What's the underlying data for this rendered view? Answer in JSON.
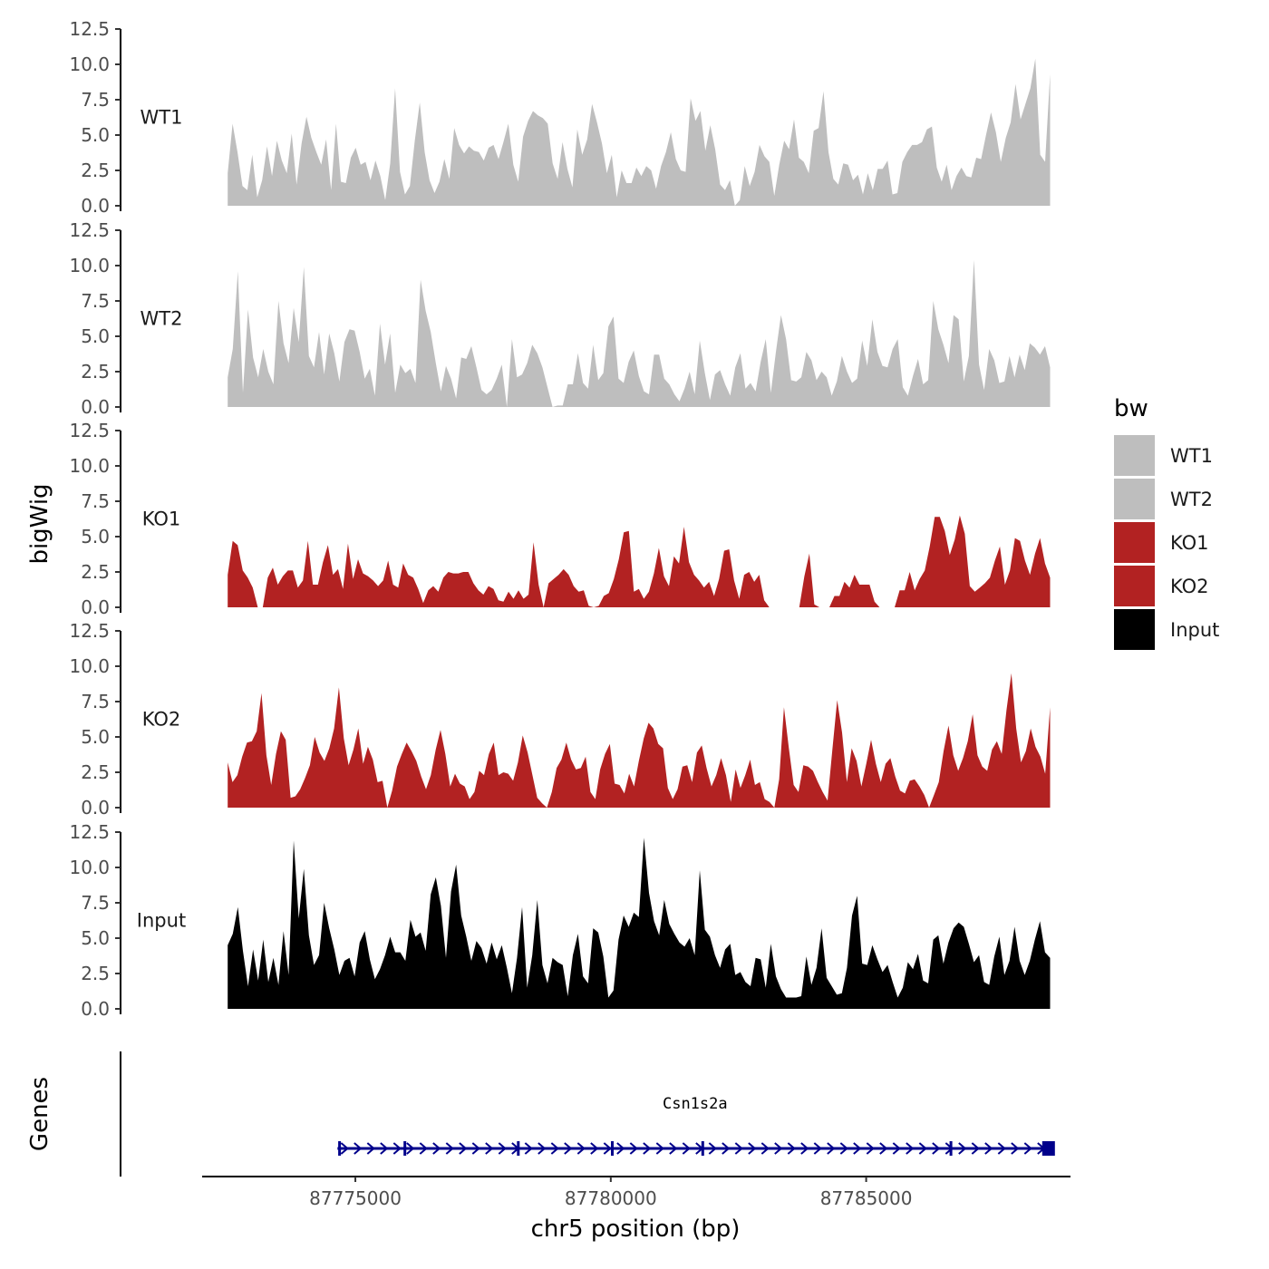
{
  "chart_data": {
    "type": "area",
    "y_axis_title": "bigWig",
    "x_axis_title": "chr5 position (bp)",
    "x_range": [
      87772000,
      87789000
    ],
    "x_ticks": [
      87775000,
      87780000,
      87785000
    ],
    "x_tick_labels": [
      "87775000",
      "87780000",
      "87785000"
    ],
    "y_range": [
      0,
      12.5
    ],
    "y_ticks": [
      0,
      2.5,
      5,
      7.5,
      10,
      12.5
    ],
    "y_tick_labels": [
      "0.0",
      "2.5",
      "5.0",
      "7.5",
      "10.0",
      "12.5"
    ],
    "track_x_start": 87772500,
    "track_x_end": 87788600,
    "tracks": [
      {
        "name": "WT1",
        "label": "WT1",
        "color": "#BEBEBE",
        "values": [
          2.3,
          5.8,
          3.8,
          1.4,
          1.1,
          3.6,
          0.6,
          1.8,
          4.2,
          2.1,
          4.6,
          3.2,
          2.3,
          5.1,
          1.5,
          4.4,
          6.3,
          4.8,
          3.8,
          2.9,
          4.7,
          1.1,
          5.8,
          1.7,
          1.6,
          3.4,
          4.1,
          2.9,
          3.1,
          1.8,
          3.2,
          2.1,
          0.4,
          3.0,
          8.3,
          2.4,
          0.8,
          1.4,
          4.6,
          7.3,
          3.8,
          1.8,
          0.9,
          1.7,
          3.3,
          1.9,
          5.5,
          4.3,
          3.7,
          4.2,
          3.9,
          3.8,
          3.2,
          4.1,
          4.3,
          3.3,
          4.5,
          5.8,
          2.9,
          1.7,
          4.9,
          6.0,
          6.7,
          6.4,
          6.2,
          5.8,
          3.0,
          1.9,
          4.5,
          2.6,
          1.3,
          5.4,
          3.6,
          4.7,
          7.2,
          5.9,
          4.4,
          2.3,
          3.6,
          0.6,
          2.5,
          1.6,
          1.6,
          2.7,
          2.1,
          2.8,
          2.5,
          1.2,
          2.8,
          3.8,
          5.2,
          3.3,
          2.5,
          2.4,
          7.6,
          6.0,
          6.7,
          3.9,
          5.7,
          4.0,
          1.5,
          1.1,
          1.8,
          0.0,
          0.4,
          2.8,
          1.4,
          2.4,
          4.3,
          3.5,
          3.1,
          0.7,
          2.9,
          4.6,
          4.0,
          6.1,
          3.4,
          3.1,
          2.3,
          5.3,
          5.5,
          8.1,
          3.8,
          1.9,
          1.5,
          3.0,
          2.9,
          1.8,
          2.2,
          0.8,
          2.3,
          1.1,
          2.6,
          2.6,
          3.2,
          0.8,
          0.9,
          3.1,
          3.8,
          4.3,
          4.3,
          4.5,
          5.4,
          5.6,
          2.7,
          1.7,
          2.9,
          1.1,
          2.1,
          2.7,
          2.1,
          2.0,
          3.4,
          3.3,
          5.0,
          6.6,
          5.2,
          3.1,
          4.8,
          5.9,
          8.6,
          6.1,
          7.2,
          8.3,
          10.4,
          3.6,
          3.1,
          9.3
        ]
      },
      {
        "name": "WT2",
        "label": "WT2",
        "color": "#BEBEBE",
        "values": [
          2.1,
          4.1,
          9.6,
          1.0,
          6.9,
          3.5,
          2.1,
          4.1,
          2.5,
          1.6,
          7.5,
          4.5,
          3.1,
          7.0,
          4.6,
          9.9,
          3.6,
          2.8,
          5.3,
          2.3,
          5.2,
          3.8,
          1.8,
          4.6,
          5.5,
          5.4,
          3.9,
          2.0,
          2.7,
          0.8,
          5.9,
          3.0,
          5.2,
          1.0,
          3.0,
          2.4,
          2.7,
          1.7,
          9.0,
          6.8,
          5.3,
          3.1,
          1.1,
          2.9,
          2.0,
          0.6,
          3.5,
          3.4,
          4.3,
          2.8,
          1.2,
          0.9,
          1.2,
          2.0,
          3.0,
          0.0,
          4.8,
          2.1,
          2.3,
          3.1,
          4.4,
          3.8,
          2.8,
          1.4,
          0.0,
          0.1,
          0.1,
          1.6,
          1.6,
          3.8,
          1.7,
          1.3,
          4.4,
          1.9,
          2.4,
          5.7,
          6.4,
          2.0,
          1.7,
          3.2,
          4.0,
          2.2,
          1.1,
          0.9,
          3.7,
          3.7,
          2.0,
          1.6,
          0.9,
          0.4,
          1.3,
          2.5,
          0.9,
          4.7,
          2.4,
          0.5,
          2.3,
          2.6,
          1.6,
          0.8,
          2.8,
          3.8,
          1.3,
          1.7,
          1.1,
          3.2,
          4.8,
          1.0,
          3.9,
          6.5,
          4.8,
          1.9,
          1.8,
          2.1,
          3.9,
          3.3,
          1.9,
          2.5,
          2.1,
          0.8,
          1.8,
          3.6,
          2.5,
          1.7,
          2.0,
          4.7,
          2.9,
          6.2,
          3.9,
          2.9,
          2.8,
          4.1,
          4.8,
          1.4,
          0.8,
          2.2,
          3.4,
          1.6,
          1.9,
          7.5,
          5.5,
          4.4,
          3.1,
          6.5,
          6.2,
          1.8,
          3.6,
          10.4,
          3.0,
          1.2,
          4.1,
          3.3,
          1.7,
          1.8,
          3.6,
          2.1,
          3.7,
          2.6,
          4.5,
          4.2,
          3.7,
          4.3,
          2.8
        ]
      },
      {
        "name": "KO1",
        "label": "KO1",
        "color": "#B22222",
        "values": [
          2.3,
          4.7,
          4.4,
          2.6,
          2.1,
          1.4,
          0.0,
          0.0,
          2.1,
          2.8,
          1.6,
          2.2,
          2.6,
          2.6,
          1.4,
          1.9,
          4.7,
          1.6,
          1.6,
          3.2,
          4.4,
          2.3,
          2.7,
          1.3,
          4.5,
          2.0,
          3.4,
          2.4,
          2.2,
          1.9,
          1.5,
          1.9,
          3.3,
          1.6,
          1.4,
          3.1,
          2.3,
          2.1,
          1.3,
          0.3,
          1.2,
          1.5,
          1.1,
          2.1,
          2.5,
          2.4,
          2.4,
          2.5,
          2.5,
          1.7,
          1.2,
          0.9,
          1.5,
          1.3,
          0.5,
          0.4,
          1.1,
          0.6,
          1.2,
          0.6,
          0.9,
          4.6,
          1.6,
          0.0,
          1.7,
          2.0,
          2.3,
          2.7,
          2.3,
          1.5,
          1.1,
          1.2,
          0.1,
          0.0,
          0.1,
          0.8,
          1.0,
          2.0,
          3.4,
          5.3,
          5.4,
          1.1,
          1.3,
          0.6,
          1.1,
          2.4,
          4.2,
          2.2,
          1.5,
          3.6,
          3.1,
          5.7,
          3.2,
          2.3,
          1.9,
          1.4,
          1.8,
          0.8,
          2.0,
          4.0,
          4.1,
          1.9,
          0.6,
          2.3,
          2.5,
          1.8,
          2.3,
          0.5,
          0.0,
          0.0,
          0.0,
          0.0,
          0.0,
          0.0,
          0.0,
          2.2,
          3.8,
          0.2,
          0.0,
          0.0,
          0.0,
          0.8,
          0.8,
          1.8,
          1.4,
          2.3,
          1.6,
          1.6,
          1.6,
          0.4,
          0.0,
          0.0,
          0.0,
          0.0,
          1.2,
          1.2,
          2.5,
          1.2,
          2.0,
          2.6,
          4.3,
          6.4,
          6.4,
          5.4,
          3.7,
          4.8,
          6.5,
          5.2,
          1.5,
          1.1,
          1.4,
          1.7,
          2.1,
          3.3,
          4.3,
          1.6,
          2.6,
          4.9,
          4.7,
          3.3,
          2.3,
          3.8,
          4.9,
          3.1,
          2.1
        ]
      },
      {
        "name": "KO2",
        "label": "KO2",
        "color": "#B22222",
        "values": [
          3.2,
          1.8,
          2.3,
          3.6,
          4.6,
          4.7,
          5.4,
          8.1,
          3.7,
          1.6,
          3.8,
          5.4,
          4.8,
          0.7,
          0.8,
          1.3,
          2.1,
          3.0,
          5.0,
          3.9,
          3.3,
          4.2,
          5.6,
          8.5,
          4.9,
          3.0,
          4.1,
          5.6,
          3.1,
          4.3,
          3.4,
          1.8,
          1.9,
          0.0,
          1.2,
          2.9,
          3.8,
          4.6,
          4.0,
          3.3,
          2.2,
          1.3,
          2.3,
          4.1,
          5.5,
          3.8,
          1.5,
          2.4,
          1.7,
          1.5,
          0.6,
          1.1,
          2.6,
          2.3,
          3.8,
          4.6,
          2.3,
          2.5,
          2.4,
          1.9,
          3.2,
          5.1,
          3.9,
          2.3,
          0.7,
          0.3,
          0.0,
          1.1,
          2.8,
          3.4,
          4.6,
          3.4,
          2.7,
          2.8,
          3.6,
          1.1,
          0.6,
          2.7,
          3.8,
          4.5,
          1.7,
          1.6,
          1.0,
          2.4,
          1.5,
          3.3,
          4.9,
          6.0,
          5.6,
          4.5,
          4.2,
          1.4,
          0.6,
          1.3,
          2.9,
          3.0,
          1.8,
          3.9,
          4.4,
          2.8,
          1.5,
          2.3,
          3.5,
          2.3,
          0.4,
          2.7,
          1.4,
          2.3,
          3.4,
          1.6,
          1.8,
          0.6,
          0.4,
          0.0,
          2.0,
          7.1,
          4.2,
          1.6,
          1.1,
          3.0,
          2.9,
          2.6,
          1.8,
          1.1,
          0.5,
          4.1,
          7.6,
          5.3,
          1.8,
          4.2,
          3.3,
          1.5,
          3.1,
          4.8,
          3.1,
          1.8,
          3.1,
          3.5,
          2.2,
          1.2,
          1.0,
          1.9,
          2.0,
          1.5,
          0.9,
          0.0,
          0.9,
          1.8,
          4.0,
          5.8,
          3.7,
          2.6,
          3.5,
          4.7,
          6.6,
          3.7,
          2.9,
          2.6,
          4.1,
          4.7,
          3.8,
          6.9,
          9.5,
          5.6,
          3.2,
          4.0,
          5.6,
          4.3,
          3.6,
          2.4,
          7.1
        ]
      },
      {
        "name": "Input",
        "label": "Input",
        "color": "#000000",
        "values": [
          4.5,
          5.3,
          7.2,
          4.1,
          1.6,
          4.2,
          2.0,
          4.9,
          1.9,
          3.6,
          1.7,
          5.5,
          2.4,
          11.9,
          6.4,
          9.9,
          5.2,
          3.1,
          3.8,
          7.5,
          5.7,
          4.2,
          2.4,
          3.4,
          3.6,
          2.3,
          4.7,
          5.5,
          3.5,
          2.1,
          2.8,
          3.8,
          5.1,
          4.0,
          4.0,
          3.4,
          6.3,
          5.1,
          5.4,
          4.1,
          8.1,
          9.3,
          7.3,
          3.6,
          8.3,
          10.2,
          6.6,
          5.1,
          3.4,
          4.8,
          4.3,
          3.2,
          4.7,
          3.5,
          4.5,
          2.9,
          1.1,
          3.6,
          7.2,
          1.5,
          3.8,
          7.7,
          3.1,
          1.8,
          3.6,
          3.3,
          3.1,
          0.9,
          3.8,
          5.3,
          2.3,
          1.8,
          5.7,
          5.4,
          3.7,
          0.8,
          1.3,
          4.9,
          6.6,
          5.8,
          6.8,
          6.5,
          12.1,
          8.2,
          6.2,
          5.2,
          7.7,
          6.0,
          5.3,
          4.7,
          4.4,
          5.0,
          3.8,
          9.8,
          5.6,
          5.1,
          3.8,
          2.9,
          4.2,
          4.6,
          2.4,
          2.6,
          1.9,
          1.6,
          3.6,
          3.5,
          1.5,
          4.6,
          2.3,
          1.4,
          0.8,
          0.8,
          0.8,
          0.9,
          3.7,
          1.7,
          2.9,
          5.7,
          2.2,
          1.6,
          1.0,
          1.1,
          2.9,
          6.6,
          8.0,
          3.2,
          3.1,
          4.5,
          3.5,
          2.6,
          3.1,
          1.9,
          0.8,
          1.5,
          3.3,
          2.8,
          3.9,
          2.0,
          1.8,
          4.9,
          5.2,
          3.2,
          4.7,
          5.7,
          6.1,
          5.8,
          4.6,
          3.3,
          3.8,
          1.9,
          1.7,
          3.7,
          5.1,
          2.4,
          3.4,
          5.8,
          3.4,
          2.4,
          3.4,
          4.9,
          6.2,
          4.0,
          3.6
        ]
      }
    ],
    "genes_track": {
      "title": "Genes",
      "gene_name": "Csn1s2a",
      "strand": "+",
      "color": "#00008B",
      "start": 87774650,
      "end": 87788650,
      "exons": [
        87774690,
        87775970,
        87778190,
        87780030,
        87781800,
        87786660,
        87788570
      ]
    },
    "legend": {
      "title": "bw",
      "placement": "right",
      "items": [
        {
          "label": "WT1",
          "color": "#BEBEBE"
        },
        {
          "label": "WT2",
          "color": "#BEBEBE"
        },
        {
          "label": "KO1",
          "color": "#B22222"
        },
        {
          "label": "KO2",
          "color": "#B22222"
        },
        {
          "label": "Input",
          "color": "#000000"
        }
      ]
    }
  }
}
